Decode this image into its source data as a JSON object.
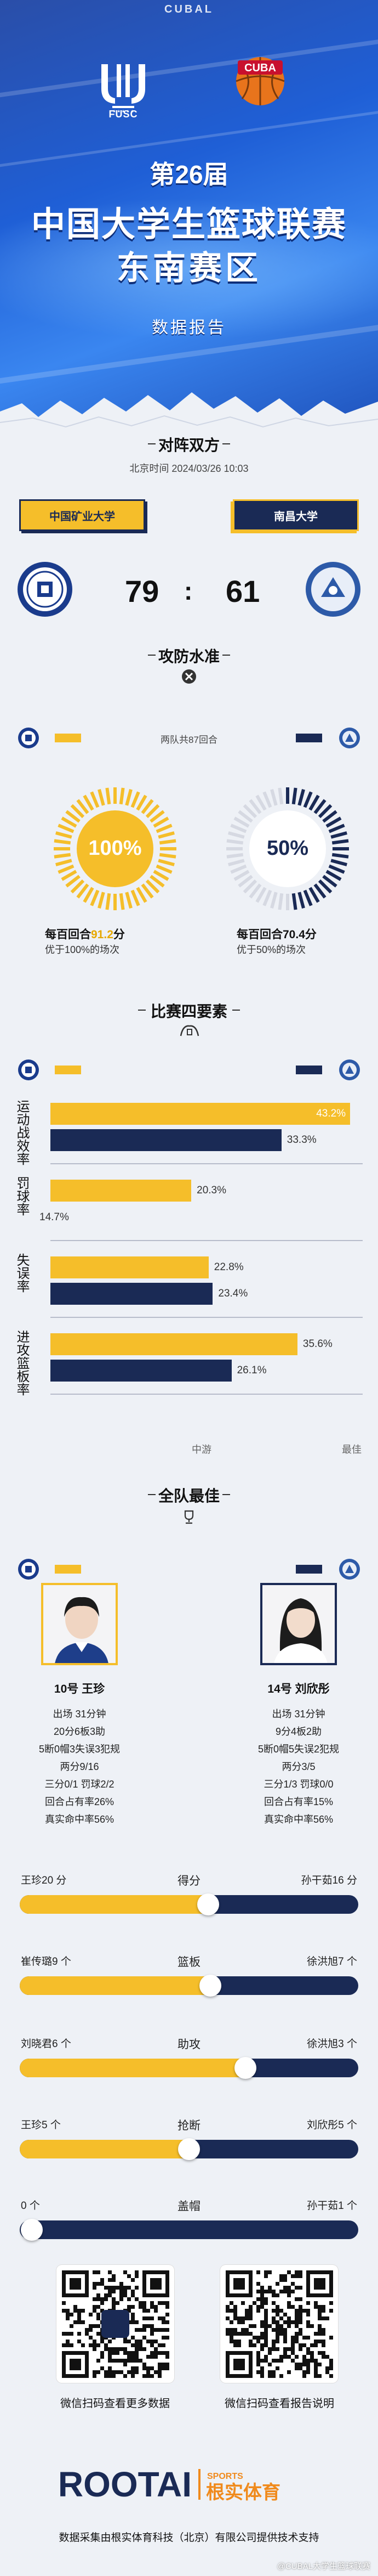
{
  "header": {
    "brand": "CUBAL",
    "left_logo_text": "FUSC",
    "right_logo_text": "CUBA",
    "edition": "第26届",
    "title_line1": "中国大学生篮球联赛",
    "title_line2": "东南赛区",
    "report": "数据报告"
  },
  "matchup": {
    "title": "对阵双方",
    "time": "北京时间 2024/03/26 10:03",
    "team_left": "中国矿业大学",
    "team_right": "南昌大学",
    "score_left": "79",
    "colon": ":",
    "score_right": "61"
  },
  "offense": {
    "title": "攻防水准",
    "possessions": "两队共87回合",
    "left": {
      "pct": 1.0,
      "pct_text": "100%",
      "per100_pre": "每百回合",
      "per100_val": "91.2",
      "per100_unit": "分",
      "sub": "优于100%的场次"
    },
    "right": {
      "pct": 0.5,
      "pct_text": "50%",
      "per100_pre": "每百回合",
      "per100_val": "70.4",
      "per100_unit": "分",
      "sub": "优于50%的场次"
    }
  },
  "four_factors": {
    "title": "比赛四要素",
    "scale_mid": "中游",
    "scale_best": "最佳",
    "rows": [
      {
        "label": "运动战效率",
        "left": 0.432,
        "left_text": "43.2%",
        "right": 0.333,
        "right_text": "33.3%"
      },
      {
        "label": "罚球率",
        "left": 0.203,
        "left_text": "20.3%",
        "right": 0.147,
        "right_text": "14.7%"
      },
      {
        "label": "失误率",
        "left": 0.228,
        "left_text": "22.8%",
        "right": 0.234,
        "right_text": "23.4%"
      },
      {
        "label": "进攻篮板率",
        "left": 0.356,
        "left_text": "35.6%",
        "right": 0.261,
        "right_text": "26.1%"
      }
    ]
  },
  "best": {
    "title": "全队最佳",
    "left": {
      "name": "10号 王珍",
      "lines": [
        "出场 31分钟",
        "20分6板3助",
        "5断0帽3失误3犯规",
        "两分9/16",
        "三分0/1 罚球2/2",
        "回合占有率26%",
        "真实命中率56%"
      ]
    },
    "right": {
      "name": "14号 刘欣彤",
      "lines": [
        "出场 31分钟",
        "9分4板2助",
        "5断0帽5失误2犯规",
        "两分3/5",
        "三分1/3 罚球0/0",
        "回合占有率15%",
        "真实命中率56%"
      ]
    },
    "compare": [
      {
        "label": "得分",
        "left": "王珍20 分",
        "right": "孙干茹16 分",
        "ratio": 0.556
      },
      {
        "label": "篮板",
        "left": "崔传璐9 个",
        "right": "徐洪旭7 个",
        "ratio": 0.563
      },
      {
        "label": "助攻",
        "left": "刘晓君6 个",
        "right": "徐洪旭3 个",
        "ratio": 0.667
      },
      {
        "label": "抢断",
        "left": "王珍5 个",
        "right": "刘欣彤5 个",
        "ratio": 0.5
      },
      {
        "label": "盖帽",
        "left": "0 个",
        "right": "孙干茹1 个",
        "ratio": 0.0
      }
    ]
  },
  "qr": {
    "left_caption": "微信扫码查看更多数据",
    "right_caption": "微信扫码查看报告说明"
  },
  "footer": {
    "brand_en": "ROOTAI",
    "brand_tag": "SPORTS",
    "brand_cn": "根实体育",
    "text": "数据采集由根实体育科技（北京）有限公司提供技术支持",
    "watermark": "@CUBAL大学生篮球联赛"
  },
  "colors": {
    "gold": "#f5be2a",
    "navy": "#1a2a55",
    "blue": "#1f5fd6",
    "bg": "#eef1f6"
  }
}
